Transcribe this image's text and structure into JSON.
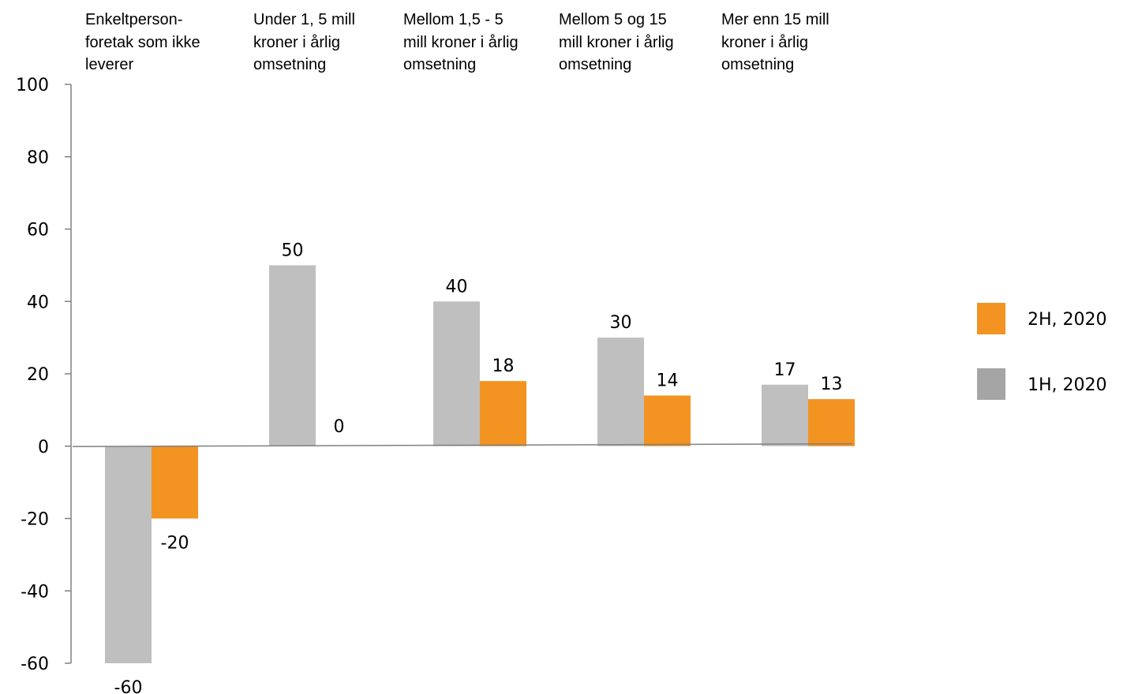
{
  "chart_data": {
    "type": "bar",
    "categories": [
      [
        "Enkeltperson-",
        "foretak som ikke",
        "leverer"
      ],
      [
        "Under 1, 5 mill",
        "kroner i årlig",
        "omsetning"
      ],
      [
        "Mellom 1,5 - 5",
        "mill kroner i årlig",
        "omsetning"
      ],
      [
        "Mellom 5 og 15",
        "mill kroner i årlig",
        "omsetning"
      ],
      [
        "Mer enn 15 mill",
        "kroner i årlig",
        "omsetning"
      ]
    ],
    "series": [
      {
        "name": "1H, 2020",
        "values": [
          -60,
          50,
          40,
          30,
          17
        ],
        "labels": [
          "-60",
          "50",
          "40",
          "30",
          "17"
        ],
        "color": "#bfbfbf",
        "legend_color": "#a5a5a5"
      },
      {
        "name": "2H, 2020",
        "values": [
          -20,
          0,
          18,
          14,
          13
        ],
        "labels": [
          "-20",
          "0",
          "18",
          "14",
          "13"
        ],
        "color": "#f39321",
        "legend_color": "#f39321"
      }
    ],
    "ylim": [
      -60,
      100
    ],
    "yticks": [
      "100",
      "80",
      "60",
      "40",
      "20",
      "0",
      "-20",
      "-40",
      "-60"
    ],
    "ytick_values": [
      100,
      80,
      60,
      40,
      20,
      0,
      -20,
      -40,
      -60
    ],
    "category_labels_position": "top",
    "legend_position": "right",
    "legend_order": [
      "2H, 2020",
      "1H, 2020"
    ],
    "grid": false,
    "axis_color": "#808080"
  }
}
